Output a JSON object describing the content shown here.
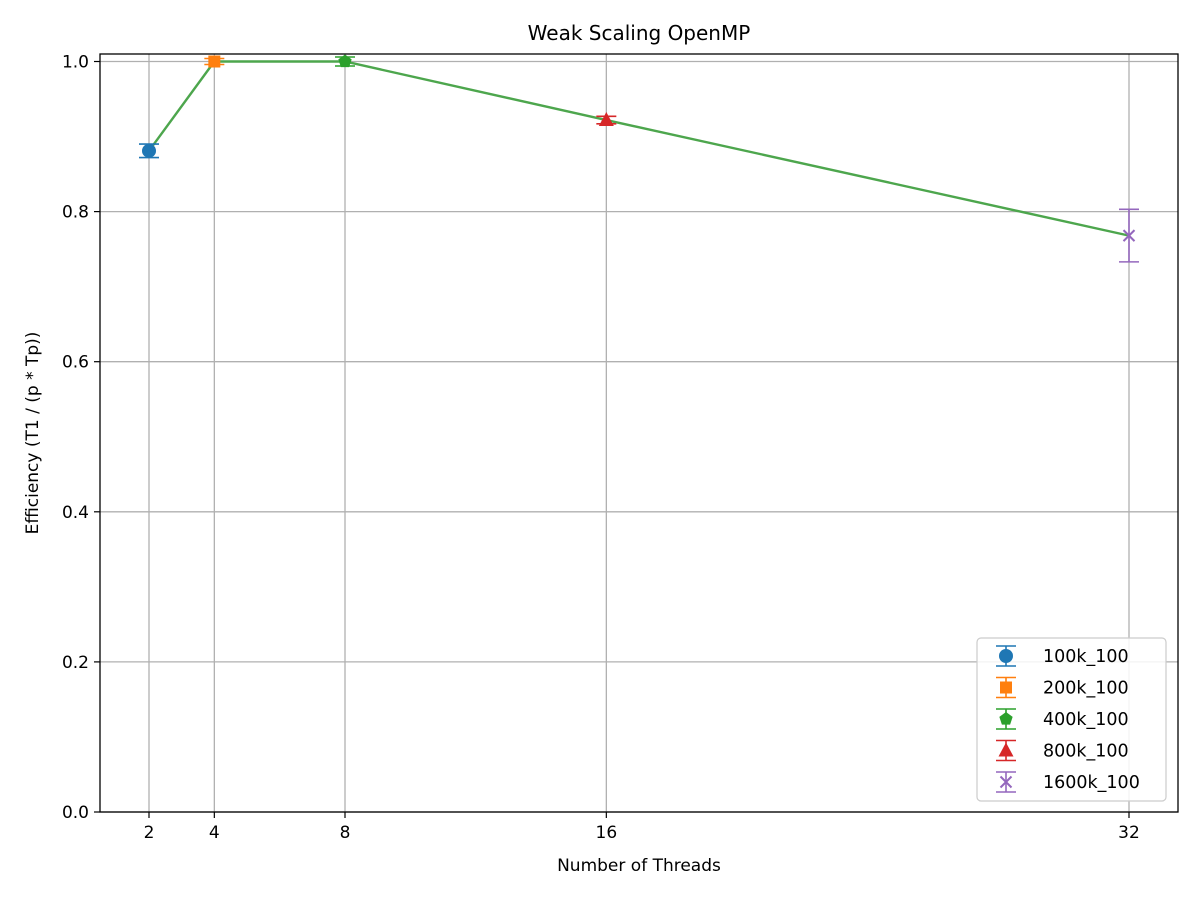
{
  "chart_data": {
    "type": "line",
    "title": "Weak Scaling OpenMP",
    "xlabel": "Number of Threads",
    "ylabel": "Efficiency (T1 / (p * Tp))",
    "xlim": [
      0.5,
      33.5
    ],
    "ylim": [
      0.0,
      1.01
    ],
    "xticks": [
      2,
      4,
      8,
      16,
      32
    ],
    "yticks": [
      0.0,
      0.2,
      0.4,
      0.6,
      0.8,
      1.0
    ],
    "ytick_labels": [
      "0.0",
      "0.2",
      "0.4",
      "0.6",
      "0.8",
      "1.0"
    ],
    "grid": true,
    "legend_position": "lower-right",
    "line": {
      "x": [
        2,
        4,
        8,
        16,
        32
      ],
      "y": [
        0.881,
        1.0,
        1.0,
        0.922,
        0.768
      ],
      "color": "#4da64d"
    },
    "series": [
      {
        "name": "100k_100",
        "x": 2,
        "y": 0.881,
        "err": 0.009,
        "marker": "circle",
        "color": "#1f77b4"
      },
      {
        "name": "200k_100",
        "x": 4,
        "y": 1.0,
        "err": 0.004,
        "marker": "square",
        "color": "#ff7f0e"
      },
      {
        "name": "400k_100",
        "x": 8,
        "y": 1.0,
        "err": 0.006,
        "marker": "pentagon",
        "color": "#2ca02c"
      },
      {
        "name": "800k_100",
        "x": 16,
        "y": 0.922,
        "err": 0.005,
        "marker": "triangle",
        "color": "#d62728"
      },
      {
        "name": "1600k_100",
        "x": 32,
        "y": 0.768,
        "err": 0.035,
        "marker": "x",
        "color": "#9467bd"
      }
    ]
  }
}
